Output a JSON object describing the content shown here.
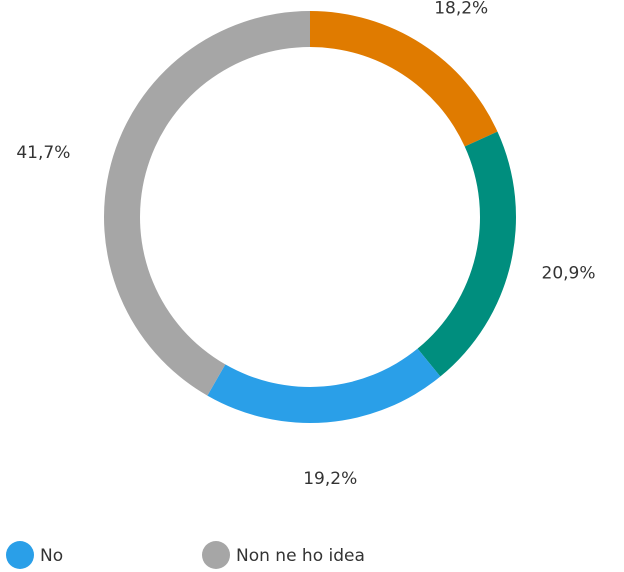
{
  "chart_data": {
    "type": "donut",
    "categories": [
      null,
      null,
      "No",
      "Non ne ho idea"
    ],
    "values": [
      18.2,
      20.9,
      19.2,
      41.7
    ],
    "value_labels": [
      "18,2%",
      "20,9%",
      "19,2%",
      "41,7%"
    ],
    "colors": [
      "#e07b00",
      "#008e7e",
      "#2a9fe8",
      "#a6a6a6"
    ],
    "legend": "bottom"
  }
}
